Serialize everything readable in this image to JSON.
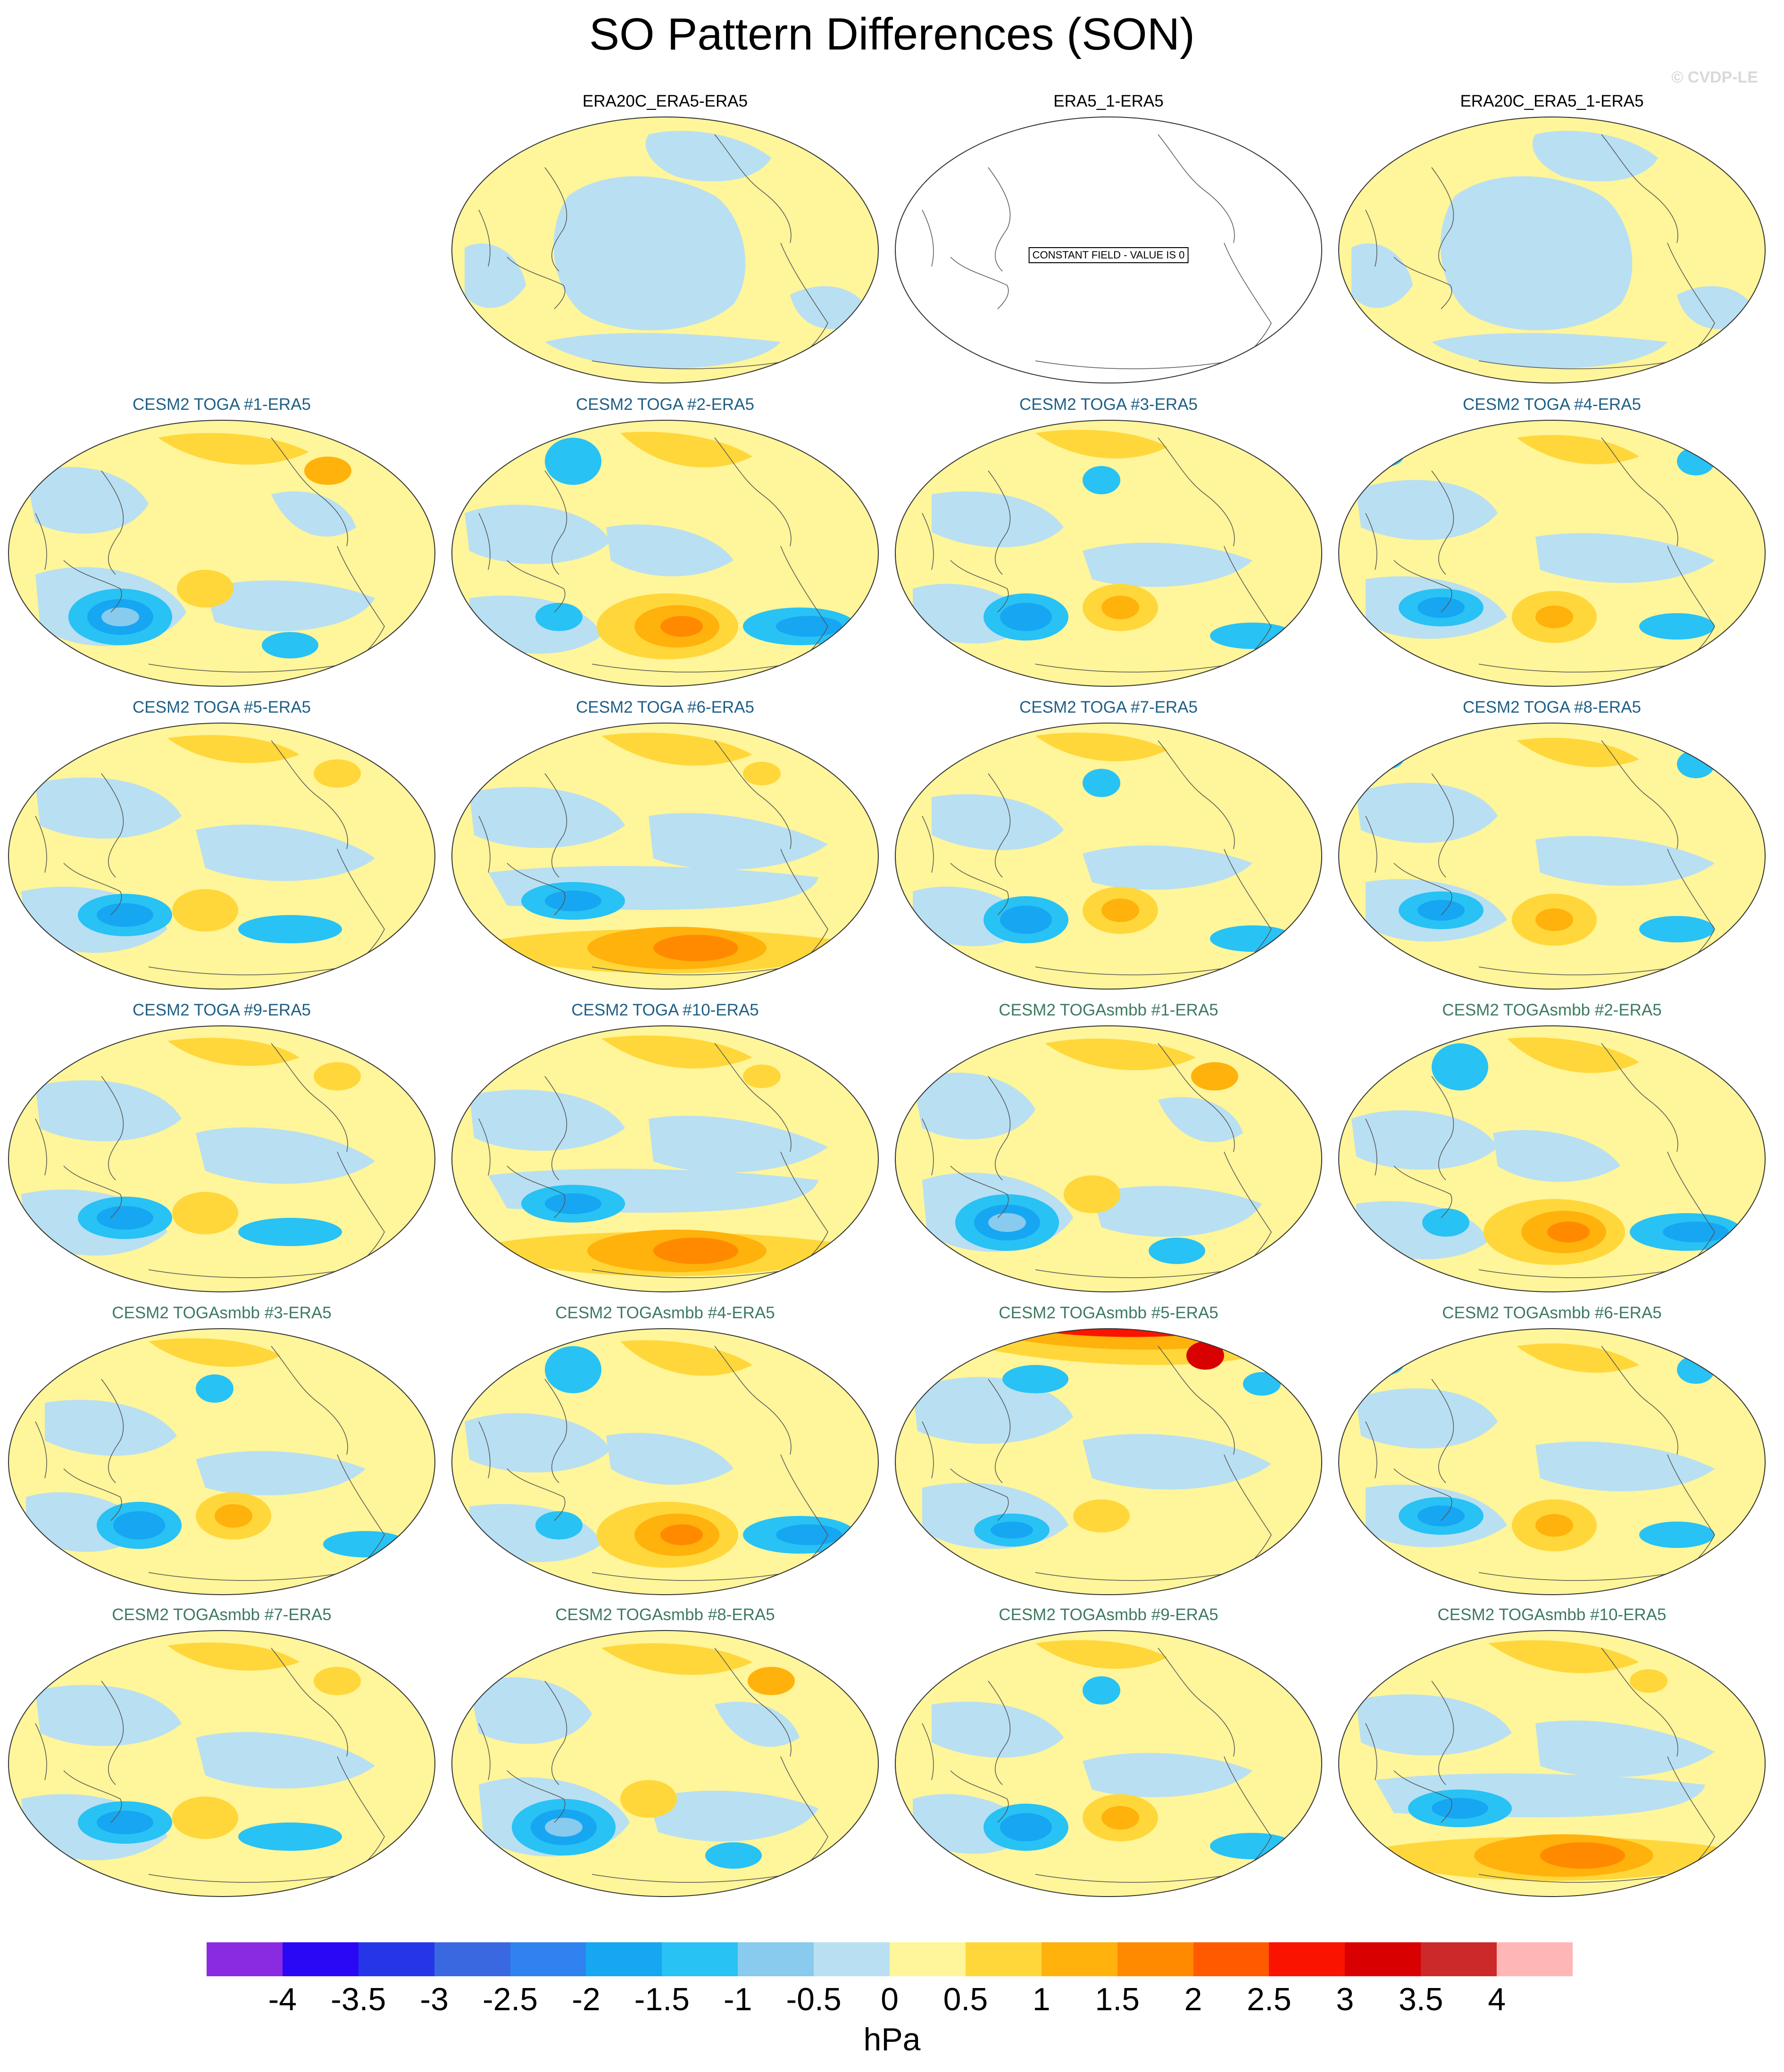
{
  "title": "SO Pattern Differences (SON)",
  "watermark": "© CVDP-LE",
  "panels": [
    {
      "title": "ERA20C_ERA5-ERA5",
      "group": "obs",
      "pattern": "obsA"
    },
    {
      "title": "ERA5_1-ERA5",
      "group": "obs",
      "pattern": "blank",
      "note": "CONSTANT FIELD - VALUE IS 0"
    },
    {
      "title": "ERA20C_ERA5_1-ERA5",
      "group": "obs",
      "pattern": "obsA"
    },
    {
      "title": "CESM2 TOGA #1-ERA5",
      "group": "toga",
      "pattern": "p1"
    },
    {
      "title": "CESM2 TOGA #2-ERA5",
      "group": "toga",
      "pattern": "p2"
    },
    {
      "title": "CESM2 TOGA #3-ERA5",
      "group": "toga",
      "pattern": "p3"
    },
    {
      "title": "CESM2 TOGA #4-ERA5",
      "group": "toga",
      "pattern": "p4"
    },
    {
      "title": "CESM2 TOGA #5-ERA5",
      "group": "toga",
      "pattern": "p5"
    },
    {
      "title": "CESM2 TOGA #6-ERA5",
      "group": "toga",
      "pattern": "p6"
    },
    {
      "title": "CESM2 TOGA #7-ERA5",
      "group": "toga",
      "pattern": "p3"
    },
    {
      "title": "CESM2 TOGA #8-ERA5",
      "group": "toga",
      "pattern": "p4"
    },
    {
      "title": "CESM2 TOGA #9-ERA5",
      "group": "toga",
      "pattern": "p5"
    },
    {
      "title": "CESM2 TOGA #10-ERA5",
      "group": "toga",
      "pattern": "p6"
    },
    {
      "title": "CESM2 TOGAsmbb #1-ERA5",
      "group": "smbb",
      "pattern": "p1"
    },
    {
      "title": "CESM2 TOGAsmbb #2-ERA5",
      "group": "smbb",
      "pattern": "p2"
    },
    {
      "title": "CESM2 TOGAsmbb #3-ERA5",
      "group": "smbb",
      "pattern": "p3"
    },
    {
      "title": "CESM2 TOGAsmbb #4-ERA5",
      "group": "smbb",
      "pattern": "p2"
    },
    {
      "title": "CESM2 TOGAsmbb #5-ERA5",
      "group": "smbb",
      "pattern": "p7"
    },
    {
      "title": "CESM2 TOGAsmbb #6-ERA5",
      "group": "smbb",
      "pattern": "p4"
    },
    {
      "title": "CESM2 TOGAsmbb #7-ERA5",
      "group": "smbb",
      "pattern": "p5"
    },
    {
      "title": "CESM2 TOGAsmbb #8-ERA5",
      "group": "smbb",
      "pattern": "p1"
    },
    {
      "title": "CESM2 TOGAsmbb #9-ERA5",
      "group": "smbb",
      "pattern": "p3"
    },
    {
      "title": "CESM2 TOGAsmbb #10-ERA5",
      "group": "smbb",
      "pattern": "p6"
    }
  ],
  "colorbar": {
    "colors": [
      "#8a2be2",
      "#2a08f5",
      "#2436e8",
      "#3a68e0",
      "#2f82f0",
      "#16a6f2",
      "#28c2f5",
      "#88cbee",
      "#b9dff2",
      "#fff59a",
      "#ffd73a",
      "#ffb10c",
      "#ff8a00",
      "#ff5a00",
      "#fa1400",
      "#d80000",
      "#cc2a2a",
      "#ffb6b6"
    ],
    "ticks": [
      "-4",
      "-3.5",
      "-3",
      "-2.5",
      "-2",
      "-1.5",
      "-1",
      "-0.5",
      "0",
      "0.5",
      "1",
      "1.5",
      "2",
      "2.5",
      "3",
      "3.5",
      "4"
    ],
    "units": "hPa"
  }
}
